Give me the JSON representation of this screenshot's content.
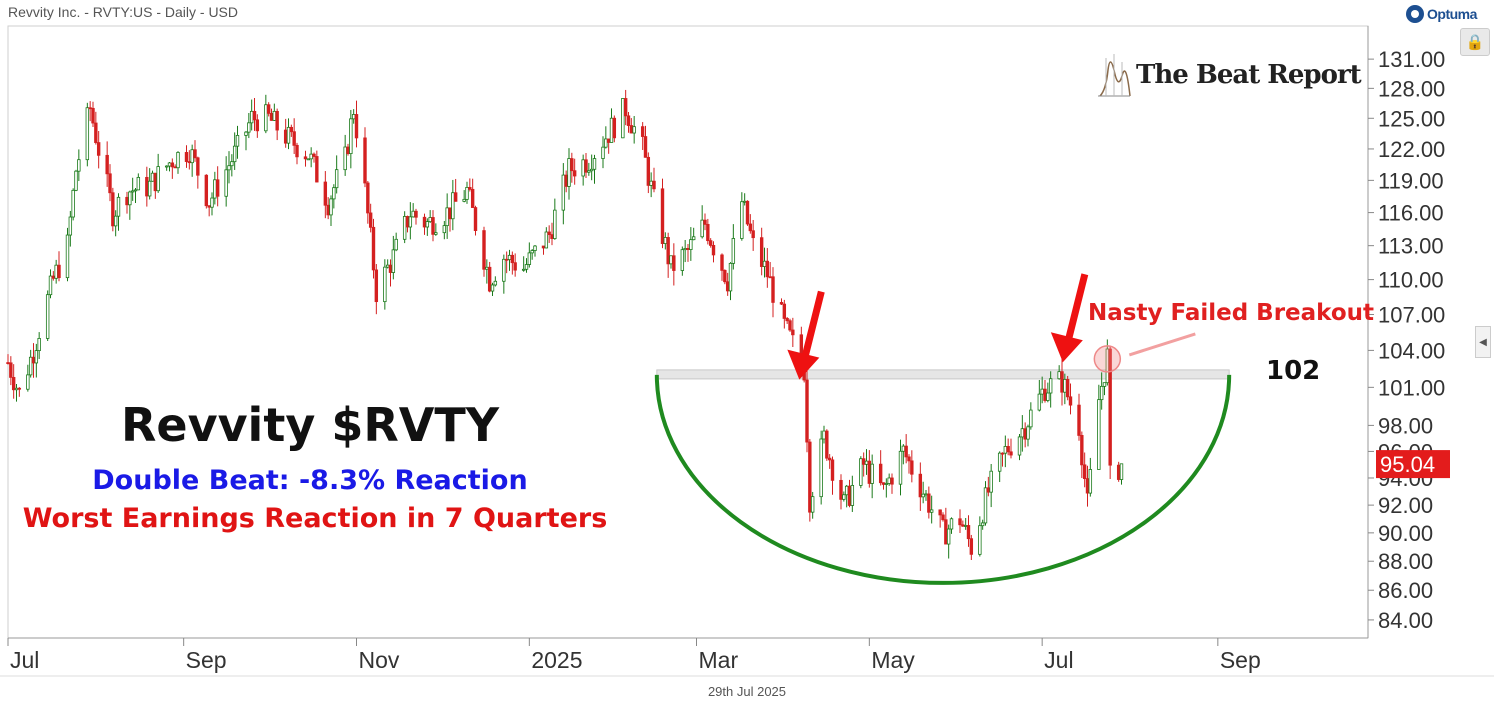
{
  "header": {
    "title": "Revvity Inc. - RVTY:US - Daily - USD"
  },
  "branding": {
    "optuma": "Optuma",
    "watermark": "The Beat Report"
  },
  "footer": {
    "date": "29th Jul 2025"
  },
  "annotations": {
    "title": "Revvity $RVTY",
    "subtitle1": "Double Beat: -8.3% Reaction",
    "subtitle2": "Worst Earnings Reaction in 7 Quarters",
    "breakout": "Nasty Failed Breakout",
    "level_label": "102"
  },
  "colors": {
    "up": "#1a7a1a",
    "down": "#d42020",
    "arc": "#1f8a1f",
    "arrow": "#ee1111",
    "last_price_bg": "#e31c1c"
  },
  "icons": {
    "lock": "lock-icon",
    "collapse": "chevron-left-icon"
  },
  "chart_data": {
    "type": "candlestick",
    "y_axis": {
      "ticks": [
        "131.00",
        "128.00",
        "125.00",
        "122.00",
        "119.00",
        "116.00",
        "113.00",
        "110.00",
        "107.00",
        "104.00",
        "101.00",
        "98.00",
        "96.00",
        "94.00",
        "92.00",
        "90.00",
        "88.00",
        "86.00",
        "84.00"
      ],
      "scale": "log",
      "range": [
        83.2,
        133
      ]
    },
    "x_axis": {
      "ticks": [
        {
          "label": "Jul",
          "date": "2024-07-01"
        },
        {
          "label": "Sep",
          "date": "2024-09-01"
        },
        {
          "label": "Nov",
          "date": "2024-11-01"
        },
        {
          "label": "2025",
          "date": "2025-01-01"
        },
        {
          "label": "Mar",
          "date": "2025-03-01"
        },
        {
          "label": "May",
          "date": "2025-05-01"
        },
        {
          "label": "Jul",
          "date": "2025-07-01"
        },
        {
          "label": "Sep",
          "date": "2025-09-01"
        }
      ],
      "range": [
        "2024-07-01",
        "2025-10-24"
      ]
    },
    "last_price": "95.04",
    "resistance": {
      "value": 102,
      "from": "2025-02-15",
      "to": "2025-09-05"
    },
    "price_path": [
      [
        "2024-07-01",
        103
      ],
      [
        "2024-07-05",
        100.5
      ],
      [
        "2024-07-10",
        104
      ],
      [
        "2024-07-17",
        110
      ],
      [
        "2024-07-22",
        113
      ],
      [
        "2024-07-25",
        120
      ],
      [
        "2024-07-30",
        126
      ],
      [
        "2024-08-02",
        122
      ],
      [
        "2024-08-07",
        116
      ],
      [
        "2024-08-12",
        118
      ],
      [
        "2024-08-20",
        118.5
      ],
      [
        "2024-08-28",
        121
      ],
      [
        "2024-09-03",
        122
      ],
      [
        "2024-09-10",
        117
      ],
      [
        "2024-09-16",
        120
      ],
      [
        "2024-09-20",
        122
      ],
      [
        "2024-09-25",
        125
      ],
      [
        "2024-10-01",
        125
      ],
      [
        "2024-10-08",
        123
      ],
      [
        "2024-10-15",
        121.5
      ],
      [
        "2024-10-22",
        117
      ],
      [
        "2024-10-28",
        121
      ],
      [
        "2024-10-31",
        126
      ],
      [
        "2024-11-04",
        118
      ],
      [
        "2024-11-08",
        109
      ],
      [
        "2024-11-14",
        112
      ],
      [
        "2024-11-20",
        116
      ],
      [
        "2024-11-26",
        115
      ],
      [
        "2024-12-03",
        116
      ],
      [
        "2024-12-10",
        118
      ],
      [
        "2024-12-18",
        110
      ],
      [
        "2024-12-23",
        112
      ],
      [
        "2024-12-30",
        111
      ],
      [
        "2025-01-08",
        114
      ],
      [
        "2025-01-15",
        120
      ],
      [
        "2025-01-22",
        121
      ],
      [
        "2025-01-30",
        124
      ],
      [
        "2025-02-04",
        126
      ],
      [
        "2025-02-10",
        122
      ],
      [
        "2025-02-14",
        117
      ],
      [
        "2025-02-20",
        111
      ],
      [
        "2025-02-26",
        112.5
      ],
      [
        "2025-03-04",
        115
      ],
      [
        "2025-03-07",
        113
      ],
      [
        "2025-03-12",
        110
      ],
      [
        "2025-03-17",
        117
      ],
      [
        "2025-03-21",
        113
      ],
      [
        "2025-03-26",
        110.5
      ],
      [
        "2025-04-01",
        106
      ],
      [
        "2025-04-08",
        102.5
      ],
      [
        "2025-04-10",
        92.5
      ],
      [
        "2025-04-15",
        97
      ],
      [
        "2025-04-22",
        92
      ],
      [
        "2025-04-29",
        95
      ],
      [
        "2025-05-06",
        93
      ],
      [
        "2025-05-13",
        96
      ],
      [
        "2025-05-20",
        93
      ],
      [
        "2025-05-27",
        90
      ],
      [
        "2025-06-02",
        91
      ],
      [
        "2025-06-06",
        89
      ],
      [
        "2025-06-12",
        93
      ],
      [
        "2025-06-18",
        96
      ],
      [
        "2025-06-25",
        98
      ],
      [
        "2025-07-02",
        101
      ],
      [
        "2025-07-08",
        101.5
      ],
      [
        "2025-07-14",
        98
      ],
      [
        "2025-07-17",
        92
      ],
      [
        "2025-07-21",
        100
      ],
      [
        "2025-07-24",
        103.5
      ],
      [
        "2025-07-25",
        94
      ],
      [
        "2025-07-29",
        95.04
      ]
    ],
    "markers": [
      {
        "type": "arrow",
        "date": "2025-04-07",
        "value": 101.3
      },
      {
        "type": "arrow",
        "date": "2025-07-09",
        "value": 102.7
      },
      {
        "type": "circle",
        "date": "2025-07-24",
        "value": 103.3
      }
    ],
    "arc": {
      "from": "2025-02-15",
      "to": "2025-09-05",
      "top": 102,
      "bottom": 86.5
    }
  }
}
